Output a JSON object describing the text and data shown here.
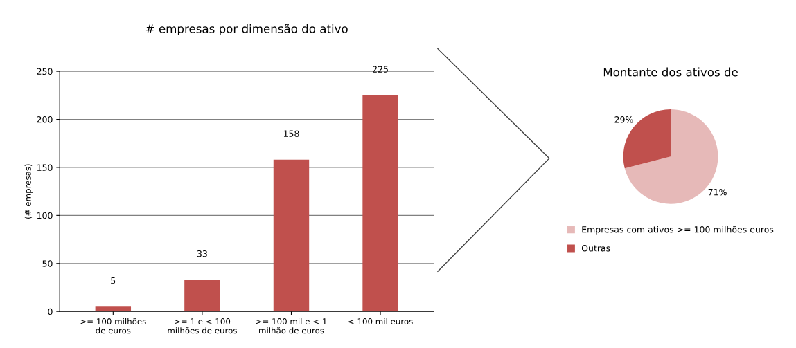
{
  "chart_data": [
    {
      "type": "bar",
      "title": "# empresas por dimensão do ativo",
      "ylabel": "(# empresas)",
      "categories": [
        ">= 100 milhões\nde euros",
        ">= 1 e < 100\nmilhões de euros",
        ">= 100 mil e < 1\nmilhão de euros",
        "< 100 mil euros"
      ],
      "values": [
        5,
        33,
        158,
        225
      ],
      "color": "#c0504d",
      "ylim": [
        0,
        250
      ],
      "yticks": [
        0,
        50,
        100,
        150,
        200,
        250
      ],
      "grid": "y",
      "data_labels": true
    },
    {
      "type": "pie",
      "title": "Montante dos ativos de",
      "categories": [
        "Empresas com ativos >= 100 milhões euros",
        "Outras"
      ],
      "values": [
        71,
        29
      ],
      "colors": [
        "#e6b9b8",
        "#c0504d"
      ],
      "value_labels": [
        "71%",
        "29%"
      ],
      "legend": "bottom"
    }
  ]
}
